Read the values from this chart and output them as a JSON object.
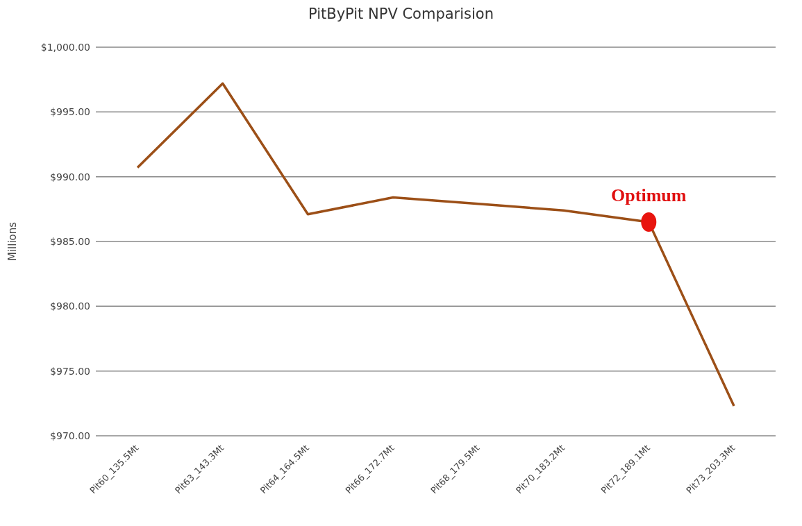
{
  "chart_data": {
    "type": "line",
    "title": "PitByPit NPV Comparision",
    "ylabel": "Millions",
    "categories": [
      "Pit60_135.5Mt",
      "Pit63_143.3Mt",
      "Pit64_164.5Mt",
      "Pit66_172.7Mt",
      "Pit68_179.5Mt",
      "Pit70_183.2Mt",
      "Pit72_189.1Mt",
      "Pit73_203.3Mt"
    ],
    "series": [
      {
        "color": "#9c4f17",
        "values": [
          990.7,
          997.2,
          987.1,
          988.4,
          987.9,
          987.4,
          986.5,
          972.3
        ]
      },
      {
        "type": "scatter",
        "marker": "circle",
        "color": "#e8150f",
        "values": [
          null,
          null,
          null,
          null,
          null,
          null,
          986.5,
          null
        ]
      }
    ],
    "annotations": [
      {
        "text": "Optimum",
        "x": "Pit72_189.1Mt",
        "y": 986.5
      }
    ],
    "ylim": [
      970,
      1000
    ],
    "yticks": [
      {
        "value": 970,
        "label": "$970.00"
      },
      {
        "value": 975,
        "label": "$975.00"
      },
      {
        "value": 980,
        "label": "$980.00"
      },
      {
        "value": 985,
        "label": "$985.00"
      },
      {
        "value": 990,
        "label": "$990.00"
      },
      {
        "value": 995,
        "label": "$995.00"
      },
      {
        "value": 1000,
        "label": "$1,000.00"
      }
    ],
    "grid": "y",
    "legend": false,
    "marker": "none",
    "line_style": "solid"
  }
}
